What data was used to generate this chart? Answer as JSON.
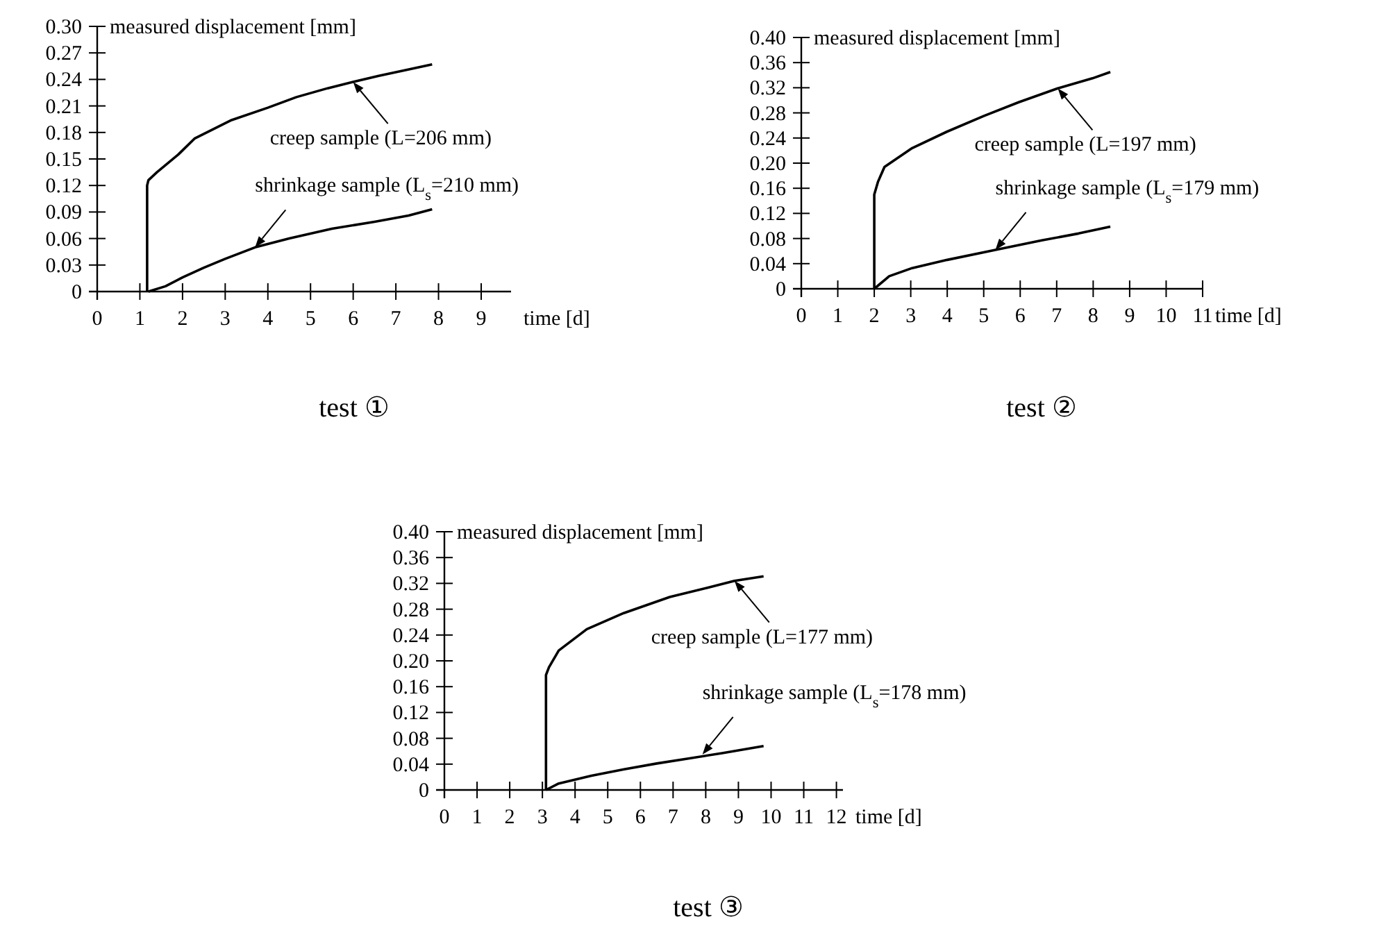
{
  "chart_data": [
    {
      "type": "line",
      "title": "test ①",
      "xlabel": "time [d]",
      "ylabel": "measured displacement [mm]",
      "xlim": [
        0,
        9.7
      ],
      "ylim": [
        0,
        0.3
      ],
      "xticks": [
        0,
        1,
        2,
        3,
        4,
        5,
        6,
        7,
        8,
        9
      ],
      "yticks": [
        0,
        0.03,
        0.06,
        0.09,
        0.12,
        0.15,
        0.18,
        0.21,
        0.24,
        0.27,
        {
          "value": 0.3,
          "label": "0.30"
        }
      ],
      "series": [
        {
          "color": "#000000",
          "x": [
            1.17,
            1.17,
            1.2,
            1.4,
            1.9,
            2.28,
            3.15,
            4.0,
            4.67,
            5.4,
            5.98,
            6.6,
            7.17,
            7.85
          ],
          "values": [
            0,
            0.12,
            0.126,
            0.135,
            0.155,
            0.173,
            0.194,
            0.208,
            0.22,
            0.23,
            0.237,
            0.244,
            0.25,
            0.257
          ]
        },
        {
          "color": "#000000",
          "x": [
            1.2,
            1.6,
            2.0,
            2.5,
            3.0,
            3.7,
            4.5,
            5.5,
            6.5,
            7.3,
            7.85
          ],
          "values": [
            0,
            0.006,
            0.016,
            0.027,
            0.037,
            0.05,
            0.06,
            0.071,
            0.079,
            0.086,
            0.093
          ]
        }
      ],
      "annotations": [
        {
          "text": "creep sample (L=206 mm)",
          "x": 6.0,
          "y": 0.237
        },
        {
          "text": "shrinkage sample (L$_{s}$=210 mm)",
          "x": 3.7,
          "y": 0.05
        }
      ]
    },
    {
      "type": "line",
      "title": "test ②",
      "xlabel": "time [d]",
      "ylabel": "measured displacement [mm]",
      "xlim": [
        0,
        11
      ],
      "ylim": [
        0,
        0.4
      ],
      "xticks": [
        0,
        1,
        2,
        3,
        4,
        5,
        6,
        7,
        8,
        9,
        10,
        11
      ],
      "yticks": [
        0,
        0.04,
        0.08,
        0.12,
        0.16,
        {
          "value": 0.2,
          "label": "0.20"
        },
        0.24,
        0.28,
        0.32,
        0.36,
        {
          "value": 0.4,
          "label": "0.40"
        }
      ],
      "series": [
        {
          "color": "#000000",
          "x": [
            2.0,
            2.0,
            2.1,
            2.28,
            3.04,
            3.99,
            5.0,
            5.96,
            7.03,
            7.98,
            8.47
          ],
          "values": [
            0,
            0.15,
            0.17,
            0.194,
            0.224,
            0.25,
            0.275,
            0.297,
            0.319,
            0.335,
            0.345
          ]
        },
        {
          "color": "#000000",
          "x": [
            2.0,
            2.41,
            3.04,
            4.0,
            5.32,
            6.59,
            7.6,
            8.47
          ],
          "values": [
            0,
            0.02,
            0.033,
            0.046,
            0.062,
            0.077,
            0.088,
            0.099
          ]
        }
      ],
      "annotations": [
        {
          "text": "creep sample (L=197 mm)",
          "x": 7.03,
          "y": 0.319
        },
        {
          "text": "shrinkage sample (L$_{s}$=179 mm)",
          "x": 5.32,
          "y": 0.062
        }
      ]
    },
    {
      "type": "line",
      "title": "test ③",
      "xlabel": "time [d]",
      "ylabel": "measured displacement [mm]",
      "xlim": [
        0,
        12.2
      ],
      "ylim": [
        0,
        0.4
      ],
      "xticks": [
        0,
        1,
        2,
        3,
        4,
        5,
        6,
        7,
        8,
        9,
        10,
        11,
        12
      ],
      "yticks": [
        0,
        0.04,
        0.08,
        0.12,
        0.16,
        {
          "value": 0.2,
          "label": "0.20"
        },
        0.24,
        0.28,
        0.32,
        0.36,
        {
          "value": 0.4,
          "label": "0.40"
        }
      ],
      "series": [
        {
          "color": "#000000",
          "x": [
            3.11,
            3.11,
            3.2,
            3.5,
            4.36,
            5.49,
            6.9,
            8.03,
            8.88,
            9.77
          ],
          "values": [
            0,
            0.178,
            0.19,
            0.216,
            0.249,
            0.274,
            0.299,
            0.313,
            0.324,
            0.331
          ]
        },
        {
          "color": "#000000",
          "x": [
            3.11,
            3.5,
            4.5,
            5.5,
            6.5,
            7.5,
            8.5,
            9.77
          ],
          "values": [
            0,
            0.01,
            0.022,
            0.032,
            0.041,
            0.049,
            0.057,
            0.068
          ]
        }
      ],
      "annotations": [
        {
          "text": "creep sample (L=177 mm)",
          "x": 8.88,
          "y": 0.324
        },
        {
          "text": "shrinkage sample (L$_{s}$=178 mm)",
          "x": 7.9,
          "y": 0.055
        }
      ]
    }
  ]
}
